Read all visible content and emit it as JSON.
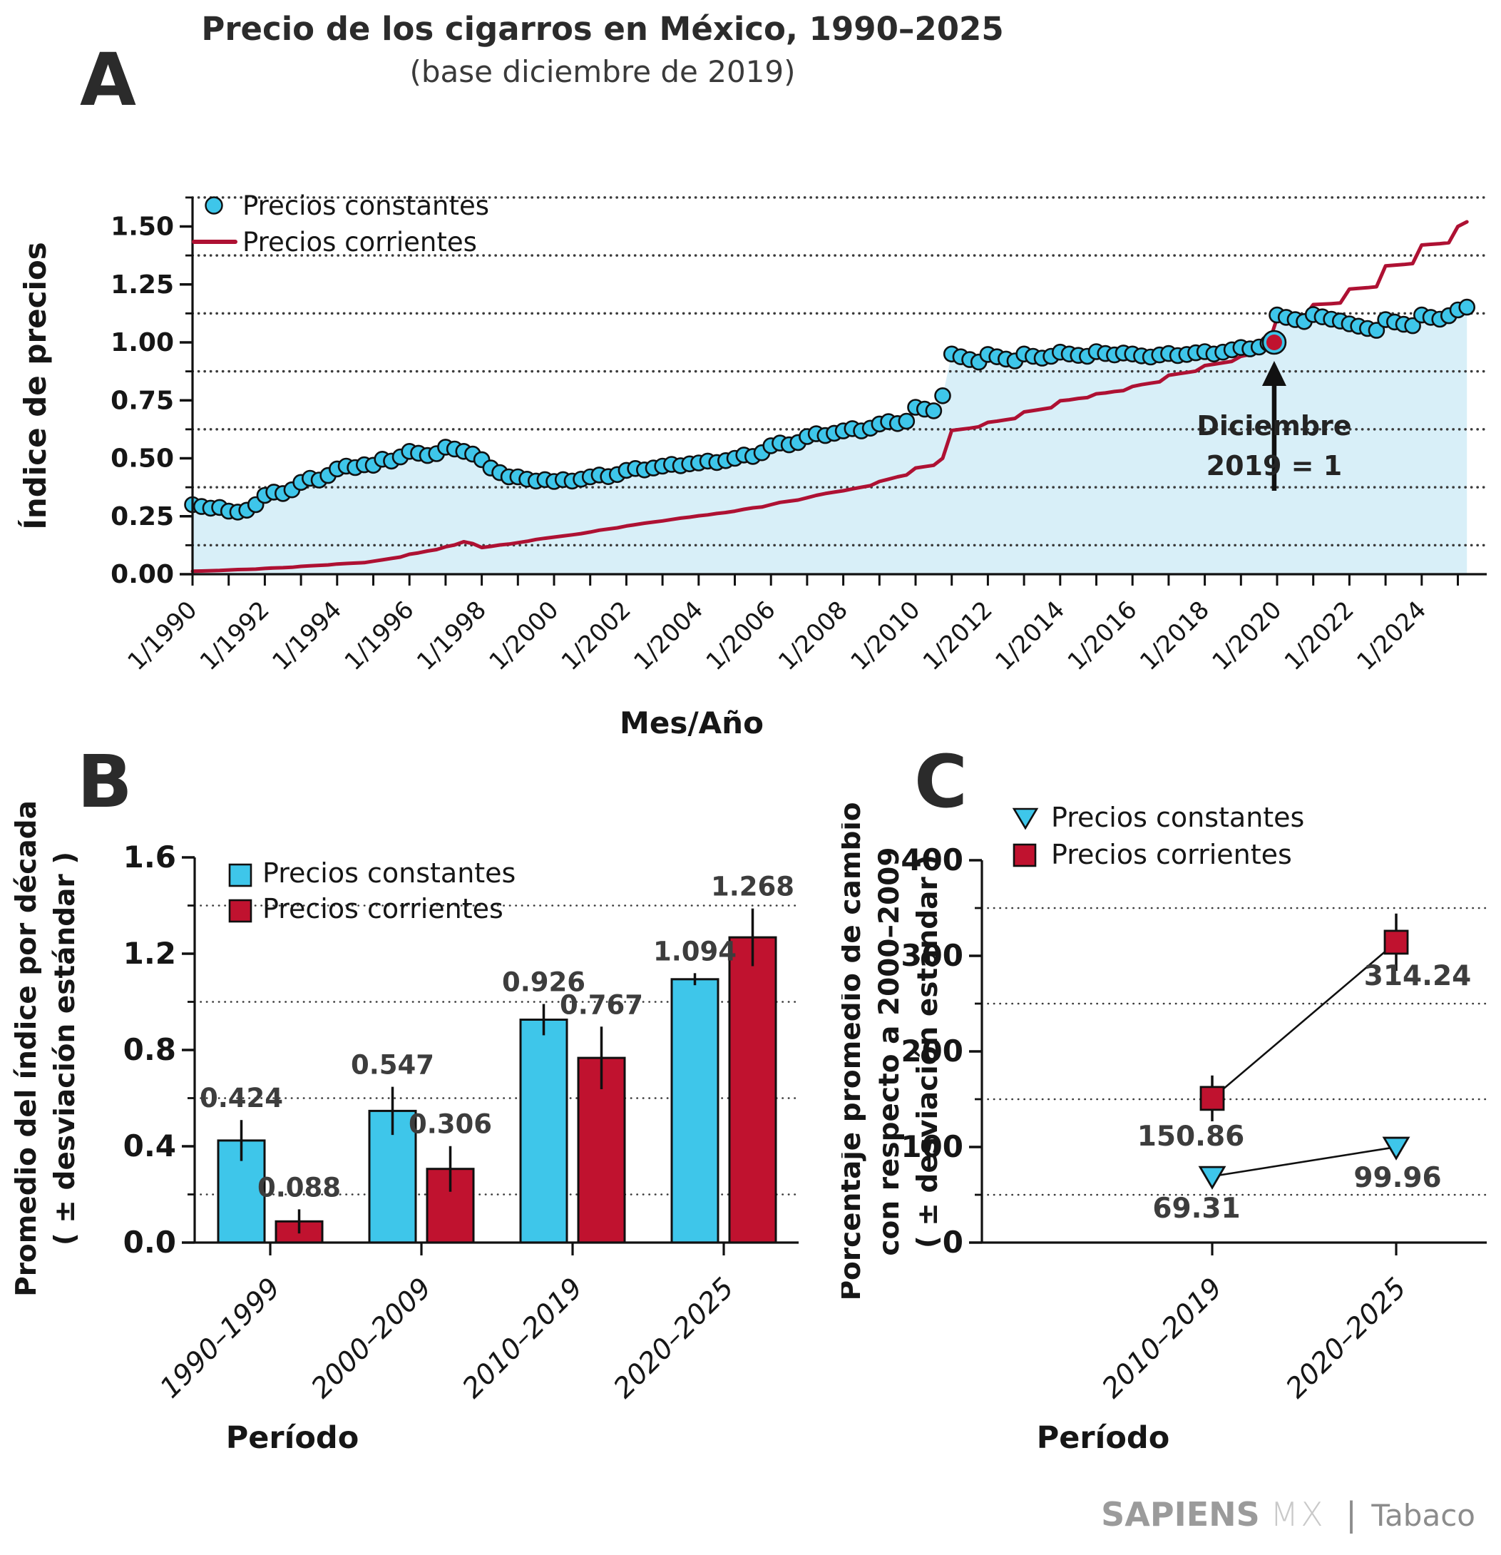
{
  "title": "Precio de los cigarros en México, 1990–2025",
  "subtitle": "(base diciembre de 2019)",
  "panel_labels": {
    "a": "A",
    "b": "B",
    "c": "C"
  },
  "footer": {
    "brand": "SAPIENS",
    "region": "MX",
    "separator": "|",
    "product": "Tabaco"
  },
  "colors": {
    "cyan": "#3ec6ea",
    "cyan_area_fill": "#d8eff8",
    "red": "#c0122f",
    "red_line": "#ae1133",
    "axis": "#111111",
    "grid_dots": "#3a3a3a",
    "tick_text": "#161616",
    "value_label": "#3d3d3d",
    "annotation_text": "#242424"
  },
  "chart_data": [
    {
      "panel": "A",
      "type": "scatter+line+area",
      "xlabel": "Mes/Año",
      "ylabel": "Índice de precios",
      "ylim": [
        0,
        1.625
      ],
      "y_ticks": [
        0,
        0.25,
        0.5,
        0.75,
        1.0,
        1.25,
        1.5
      ],
      "minor_gridlines": [
        0.125,
        0.375,
        0.625,
        0.875,
        1.125,
        1.375,
        1.625
      ],
      "x_year_range": [
        1990,
        2025
      ],
      "x_tick_labels": [
        "1/1990",
        "1/1992",
        "1/1994",
        "1/1996",
        "1/1998",
        "1/2000",
        "1/2002",
        "1/2004",
        "1/2006",
        "1/2008",
        "1/2010",
        "1/2012",
        "1/2014",
        "1/2016",
        "1/2018",
        "1/2020",
        "1/2022",
        "1/2024"
      ],
      "annotation": {
        "text_lines": [
          "Diciembre",
          "2019 = 1"
        ],
        "x": 2019.92,
        "y": 1.0
      },
      "x": {
        "start": 1990,
        "step": 0.25
      },
      "series": [
        {
          "name": "Precios constantes",
          "style": "dots",
          "values": [
            0.3,
            0.292,
            0.285,
            0.288,
            0.272,
            0.268,
            0.276,
            0.3,
            0.34,
            0.354,
            0.348,
            0.364,
            0.396,
            0.414,
            0.406,
            0.426,
            0.454,
            0.466,
            0.46,
            0.472,
            0.47,
            0.496,
            0.488,
            0.506,
            0.53,
            0.522,
            0.512,
            0.52,
            0.548,
            0.54,
            0.53,
            0.518,
            0.494,
            0.458,
            0.438,
            0.42,
            0.42,
            0.41,
            0.402,
            0.408,
            0.4,
            0.408,
            0.402,
            0.41,
            0.42,
            0.428,
            0.421,
            0.43,
            0.448,
            0.456,
            0.45,
            0.458,
            0.466,
            0.474,
            0.468,
            0.476,
            0.48,
            0.488,
            0.482,
            0.49,
            0.5,
            0.514,
            0.508,
            0.524,
            0.554,
            0.566,
            0.558,
            0.568,
            0.594,
            0.606,
            0.598,
            0.608,
            0.618,
            0.628,
            0.618,
            0.63,
            0.648,
            0.658,
            0.65,
            0.66,
            0.72,
            0.712,
            0.705,
            0.77,
            0.95,
            0.938,
            0.926,
            0.915,
            0.948,
            0.938,
            0.928,
            0.92,
            0.95,
            0.94,
            0.932,
            0.94,
            0.958,
            0.95,
            0.944,
            0.94,
            0.96,
            0.952,
            0.946,
            0.954,
            0.95,
            0.942,
            0.937,
            0.946,
            0.952,
            0.943,
            0.948,
            0.955,
            0.96,
            0.95,
            0.958,
            0.968,
            0.978,
            0.972,
            0.98,
            0.996,
            1.118,
            1.108,
            1.098,
            1.09,
            1.12,
            1.11,
            1.1,
            1.092,
            1.08,
            1.07,
            1.06,
            1.052,
            1.098,
            1.088,
            1.078,
            1.072,
            1.118,
            1.108,
            1.1,
            1.115,
            1.14,
            1.152
          ]
        },
        {
          "name": "Precios corrientes",
          "style": "line",
          "values": [
            0.013,
            0.014,
            0.015,
            0.016,
            0.018,
            0.02,
            0.021,
            0.022,
            0.025,
            0.027,
            0.028,
            0.03,
            0.034,
            0.036,
            0.038,
            0.04,
            0.044,
            0.046,
            0.048,
            0.05,
            0.056,
            0.062,
            0.068,
            0.074,
            0.086,
            0.092,
            0.1,
            0.106,
            0.118,
            0.126,
            0.14,
            0.132,
            0.115,
            0.12,
            0.126,
            0.13,
            0.136,
            0.142,
            0.15,
            0.155,
            0.16,
            0.165,
            0.17,
            0.175,
            0.182,
            0.19,
            0.195,
            0.2,
            0.208,
            0.214,
            0.22,
            0.225,
            0.23,
            0.236,
            0.242,
            0.246,
            0.252,
            0.256,
            0.262,
            0.266,
            0.272,
            0.28,
            0.286,
            0.29,
            0.3,
            0.31,
            0.315,
            0.32,
            0.33,
            0.34,
            0.348,
            0.354,
            0.36,
            0.368,
            0.375,
            0.382,
            0.4,
            0.41,
            0.42,
            0.428,
            0.458,
            0.464,
            0.47,
            0.5,
            0.62,
            0.625,
            0.63,
            0.636,
            0.655,
            0.66,
            0.666,
            0.672,
            0.7,
            0.706,
            0.712,
            0.718,
            0.748,
            0.752,
            0.758,
            0.762,
            0.778,
            0.782,
            0.788,
            0.792,
            0.81,
            0.818,
            0.824,
            0.83,
            0.858,
            0.864,
            0.87,
            0.876,
            0.9,
            0.906,
            0.912,
            0.918,
            0.94,
            0.948,
            0.958,
            0.985,
            1.105,
            1.107,
            1.108,
            1.11,
            1.163,
            1.165,
            1.167,
            1.17,
            1.23,
            1.233,
            1.236,
            1.24,
            1.33,
            1.333,
            1.336,
            1.34,
            1.42,
            1.423,
            1.426,
            1.43,
            1.5,
            1.52
          ]
        }
      ]
    },
    {
      "panel": "B",
      "type": "bar",
      "xlabel": "Período",
      "ylabel_lines": [
        "Promedio del índice por década",
        "( ± desviación estándar )"
      ],
      "categories": [
        "1990–1999",
        "2000–2009",
        "2010–2019",
        "2020–2025"
      ],
      "ylim": [
        0,
        1.6
      ],
      "y_ticks": [
        0,
        0.4,
        0.8,
        1.2,
        1.6
      ],
      "minor_gridlines": [
        0.2,
        0.6,
        1.0,
        1.4
      ],
      "series": [
        {
          "name": "Precios constantes",
          "values": [
            0.424,
            0.547,
            0.926,
            1.094
          ],
          "errors": [
            0.085,
            0.1,
            0.065,
            0.025
          ]
        },
        {
          "name": "Precios corrientes",
          "values": [
            0.088,
            0.306,
            0.767,
            1.268
          ],
          "errors": [
            0.05,
            0.095,
            0.13,
            0.12
          ]
        }
      ]
    },
    {
      "panel": "C",
      "type": "scatter",
      "xlabel": "Período",
      "ylabel_lines": [
        "Porcentaje promedio de cambio",
        "con respecto a 2000–2009",
        "( ± desviación estándar )"
      ],
      "categories": [
        "2010–2019",
        "2020–2025"
      ],
      "ylim": [
        0,
        400
      ],
      "y_ticks": [
        0,
        100,
        200,
        300,
        400
      ],
      "minor_gridlines": [
        50,
        150,
        250,
        350
      ],
      "series": [
        {
          "name": "Precios constantes",
          "marker": "triangle-down",
          "values": [
            69.31,
            99.96
          ],
          "errors": [
            9,
            9
          ]
        },
        {
          "name": "Precios corrientes",
          "marker": "square",
          "values": [
            150.86,
            314.24
          ],
          "errors": [
            24,
            30
          ]
        }
      ]
    }
  ]
}
